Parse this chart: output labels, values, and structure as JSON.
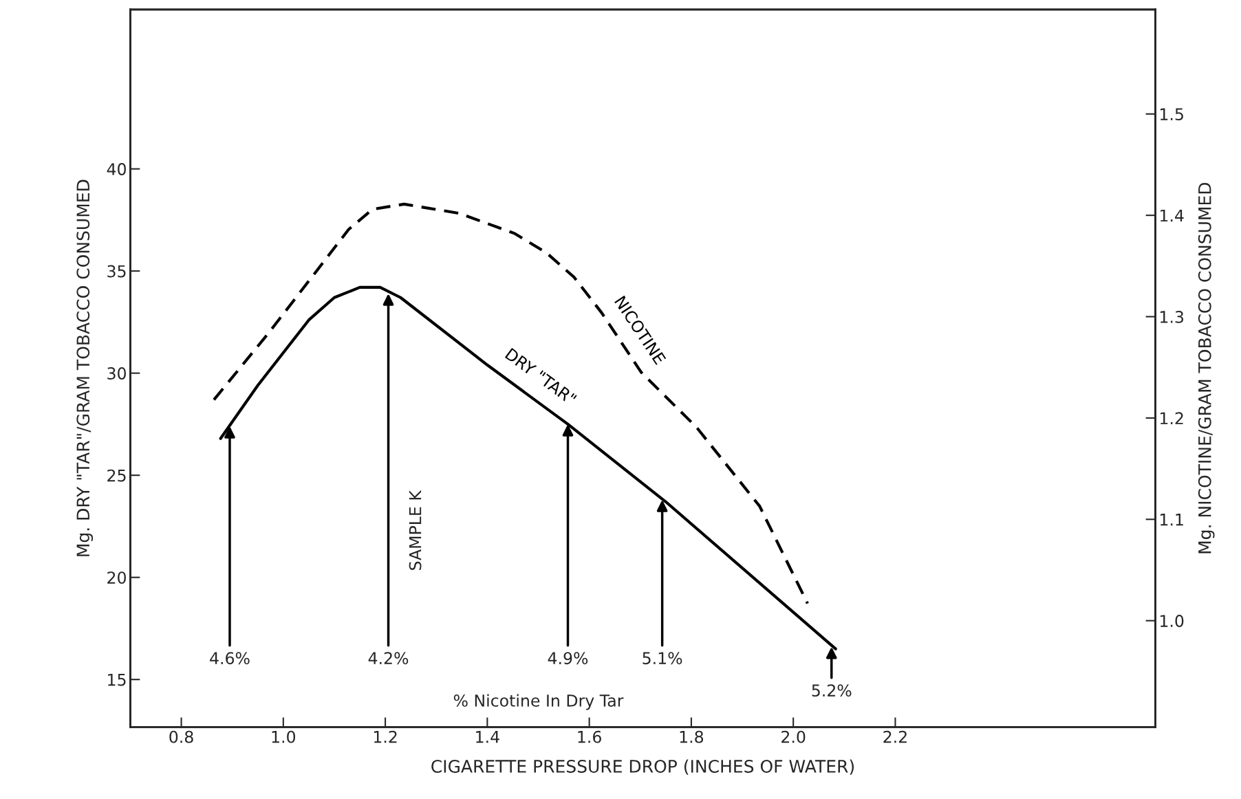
{
  "chart_data": {
    "type": "line",
    "xlabel": "CIGARETTE PRESSURE DROP (INCHES OF WATER)",
    "ylabel": "Mg. DRY \"TAR\"/GRAM TOBACCO CONSUMED",
    "y2label": "Mg. NICOTINE/GRAM TOBACCO CONSUMED",
    "xlim": [
      0.7,
      2.71
    ],
    "xticks": [
      {
        "value": 0.8,
        "label": "0.8"
      },
      {
        "value": 1.0,
        "label": "1.0"
      },
      {
        "value": 1.2,
        "label": "1.2"
      },
      {
        "value": 1.4,
        "label": "1.4"
      },
      {
        "value": 1.6,
        "label": "1.6"
      },
      {
        "value": 1.8,
        "label": "1.8"
      },
      {
        "value": 2.0,
        "label": "2.0"
      },
      {
        "value": 2.2,
        "label": "2.2"
      }
    ],
    "ylim": [
      12.67,
      47.8
    ],
    "yticks": [
      15,
      20,
      25,
      30,
      35,
      40
    ],
    "y2lim": [
      0.895,
      1.603
    ],
    "y2ticks": [
      {
        "value": 1.0,
        "label": "1.0"
      },
      1.1,
      1.2,
      1.3,
      1.4,
      1.5
    ],
    "grid": false,
    "series": [
      {
        "name": "DRY \"TAR\"",
        "color": "#000000",
        "line_style": "solid",
        "x": [
          0.877,
          0.95,
          1.05,
          1.1,
          1.15,
          1.19,
          1.23,
          1.4,
          1.558,
          1.75,
          2.083
        ],
        "values": [
          26.8,
          29.4,
          32.6,
          33.7,
          34.2,
          34.2,
          33.7,
          30.4,
          27.5,
          23.7,
          16.5
        ]
      },
      {
        "name": "NICOTINE",
        "color": "#000000",
        "line_style": "dashed",
        "axis": "y2",
        "x": [
          0.864,
          0.973,
          1.128,
          1.175,
          1.237,
          1.345,
          1.454,
          1.516,
          1.57,
          1.624,
          1.702,
          1.81,
          1.934,
          2.028
        ],
        "values": [
          1.218,
          1.285,
          1.386,
          1.406,
          1.411,
          1.402,
          1.382,
          1.363,
          1.339,
          1.304,
          1.245,
          1.191,
          1.113,
          1.017
        ]
      }
    ],
    "annotations": [
      {
        "text": "4.6%",
        "x": 0.895,
        "y": 27.4
      },
      {
        "text": "4.2%",
        "x": 1.206,
        "y": 33.9
      },
      {
        "text": "4.9%",
        "x": 1.558,
        "y": 27.5
      },
      {
        "text": "5.1%",
        "x": 1.743,
        "y": 23.8
      },
      {
        "text": "5.2%",
        "x": 2.075,
        "y": 16.6
      },
      "SAMPLE K",
      "% Nicotine In Dry Tar"
    ]
  }
}
